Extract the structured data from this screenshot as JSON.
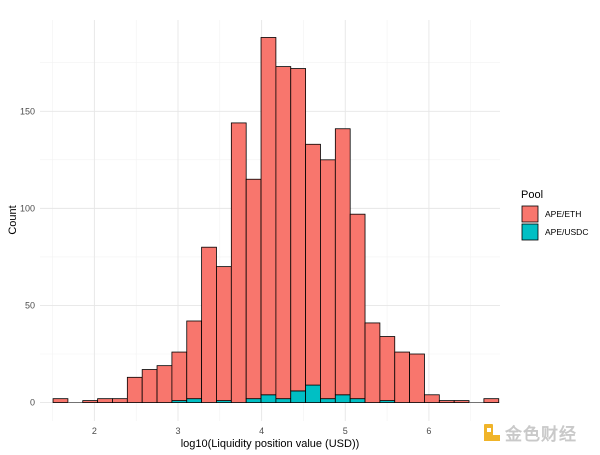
{
  "chart_data": {
    "type": "bar",
    "stacked": true,
    "title": "",
    "xlabel": "log10(Liquidity position value (USD))",
    "ylabel": "Count",
    "bins": 30,
    "x_range": [
      1.506,
      6.835
    ],
    "xlim": [
      1.35,
      6.85
    ],
    "ylim": [
      -9.5,
      197
    ],
    "x_ticks": [
      2,
      3,
      4,
      5,
      6
    ],
    "y_ticks": [
      0,
      50,
      100,
      150
    ],
    "x_tick_labels": [
      "2",
      "3",
      "4",
      "5",
      "6"
    ],
    "y_tick_labels": [
      "0",
      "50",
      "100",
      "150"
    ],
    "grid": true,
    "legend": {
      "title": "Pool",
      "position": "right"
    },
    "series": [
      {
        "name": "APE/ETH",
        "color": "#F8766D",
        "values": [
          2,
          0,
          1,
          2,
          2,
          13,
          17,
          19,
          25,
          40,
          80,
          69,
          144,
          113,
          184,
          171,
          166,
          124,
          123,
          137,
          95,
          41,
          33,
          26,
          25,
          4,
          1,
          1,
          0,
          2
        ]
      },
      {
        "name": "APE/USDC",
        "color": "#00BFC4",
        "values": [
          0,
          0,
          0,
          0,
          0,
          0,
          0,
          0,
          1,
          2,
          0,
          1,
          0,
          2,
          4,
          2,
          6,
          9,
          2,
          4,
          2,
          0,
          1,
          0,
          0,
          0,
          0,
          0,
          0,
          0
        ]
      }
    ]
  },
  "watermark": "金色财经"
}
